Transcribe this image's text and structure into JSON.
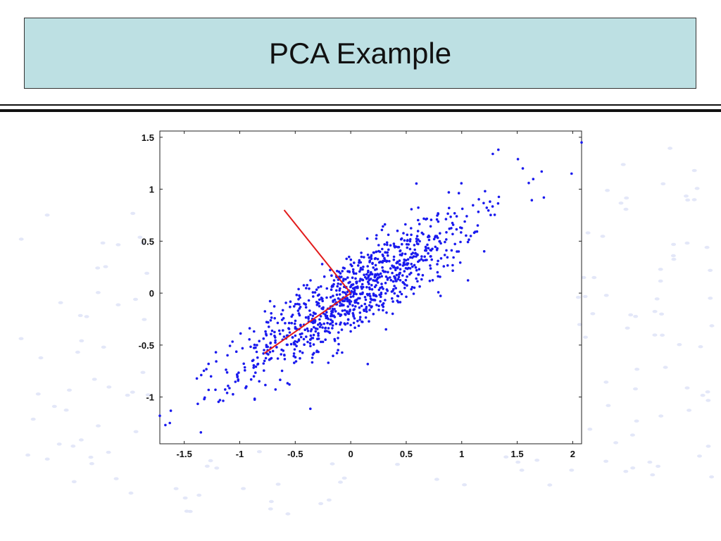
{
  "slide": {
    "title": "PCA Example"
  },
  "colors": {
    "title_bg": "#bde0e3",
    "points": "#1a1aee",
    "principal_axes": "#e21b1b",
    "faint_background_dots": "#e3e7f8"
  },
  "chart_data": {
    "type": "scatter",
    "title": "",
    "xlabel": "",
    "ylabel": "",
    "xlim": [
      -1.72,
      2.08
    ],
    "ylim": [
      -1.45,
      1.56
    ],
    "xticks": [
      "-1.5",
      "-1",
      "-0.5",
      "0",
      "0.5",
      "1",
      "1.5",
      "2"
    ],
    "yticks": [
      "-1",
      "-0.5",
      "0",
      "0.5",
      "1",
      "1.5"
    ],
    "xtick_values": [
      -1.5,
      -1,
      -0.5,
      0,
      0.5,
      1,
      1.5,
      2
    ],
    "ytick_values": [
      -1,
      -0.5,
      0,
      0.5,
      1,
      1.5
    ],
    "grid": false,
    "point_count": 1000,
    "point_correlation_slope": 0.74,
    "notable_points": [
      {
        "x": -1.72,
        "y": -1.18
      },
      {
        "x": -1.67,
        "y": -1.27
      },
      {
        "x": -1.63,
        "y": -1.25
      },
      {
        "x": -1.35,
        "y": -1.34
      },
      {
        "x": -1.32,
        "y": -1.02
      },
      {
        "x": 1.28,
        "y": 1.34
      },
      {
        "x": 1.33,
        "y": 1.38
      },
      {
        "x": 1.55,
        "y": 1.2
      },
      {
        "x": 1.72,
        "y": 1.17
      },
      {
        "x": 1.99,
        "y": 1.15
      },
      {
        "x": 2.08,
        "y": 1.45
      },
      {
        "x": 1.74,
        "y": 0.92
      }
    ],
    "lines": [
      {
        "name": "principal-axis-1",
        "x": [
          -0.78,
          0.0
        ],
        "y": [
          -0.58,
          0.0
        ]
      },
      {
        "name": "principal-axis-2",
        "x": [
          -0.6,
          0.0
        ],
        "y": [
          0.8,
          0.0
        ]
      }
    ]
  }
}
